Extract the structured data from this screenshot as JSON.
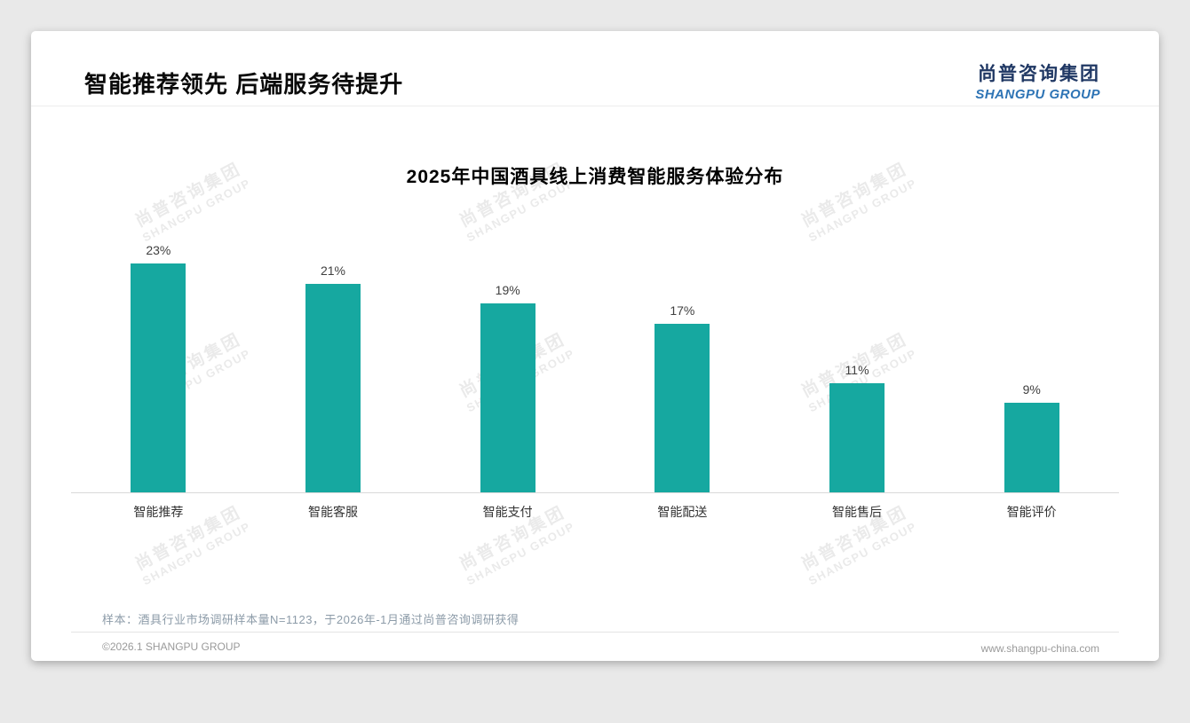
{
  "header": {
    "title": "智能推荐领先 后端服务待提升",
    "logo_cn": "尚普咨询集团",
    "logo_en": "SHANGPU GROUP"
  },
  "chart_data": {
    "type": "bar",
    "title": "2025年中国酒具线上消费智能服务体验分布",
    "categories": [
      "智能推荐",
      "智能客服",
      "智能支付",
      "智能配送",
      "智能售后",
      "智能评价"
    ],
    "values": [
      23,
      21,
      19,
      17,
      11,
      9
    ],
    "value_suffix": "%",
    "ylim": [
      0,
      25
    ],
    "grid": false,
    "legend": "none",
    "bar_color": "#16A8A0"
  },
  "watermark": {
    "line1": "尚普咨询集团",
    "line2": "SHANGPU GROUP"
  },
  "footnote": {
    "sample": "样本：酒具行业市场调研样本量N=1123，于2026年-1月通过尚普咨询调研获得"
  },
  "footer": {
    "copyright": "©2026.1 SHANGPU GROUP",
    "website": "www.shangpu-china.com"
  },
  "colors": {
    "bar": "#16A8A0",
    "logo_dark_blue": "#203864",
    "logo_blue": "#2E74B5",
    "note_text": "#8c9ba8",
    "background": "#e9e9e9"
  }
}
